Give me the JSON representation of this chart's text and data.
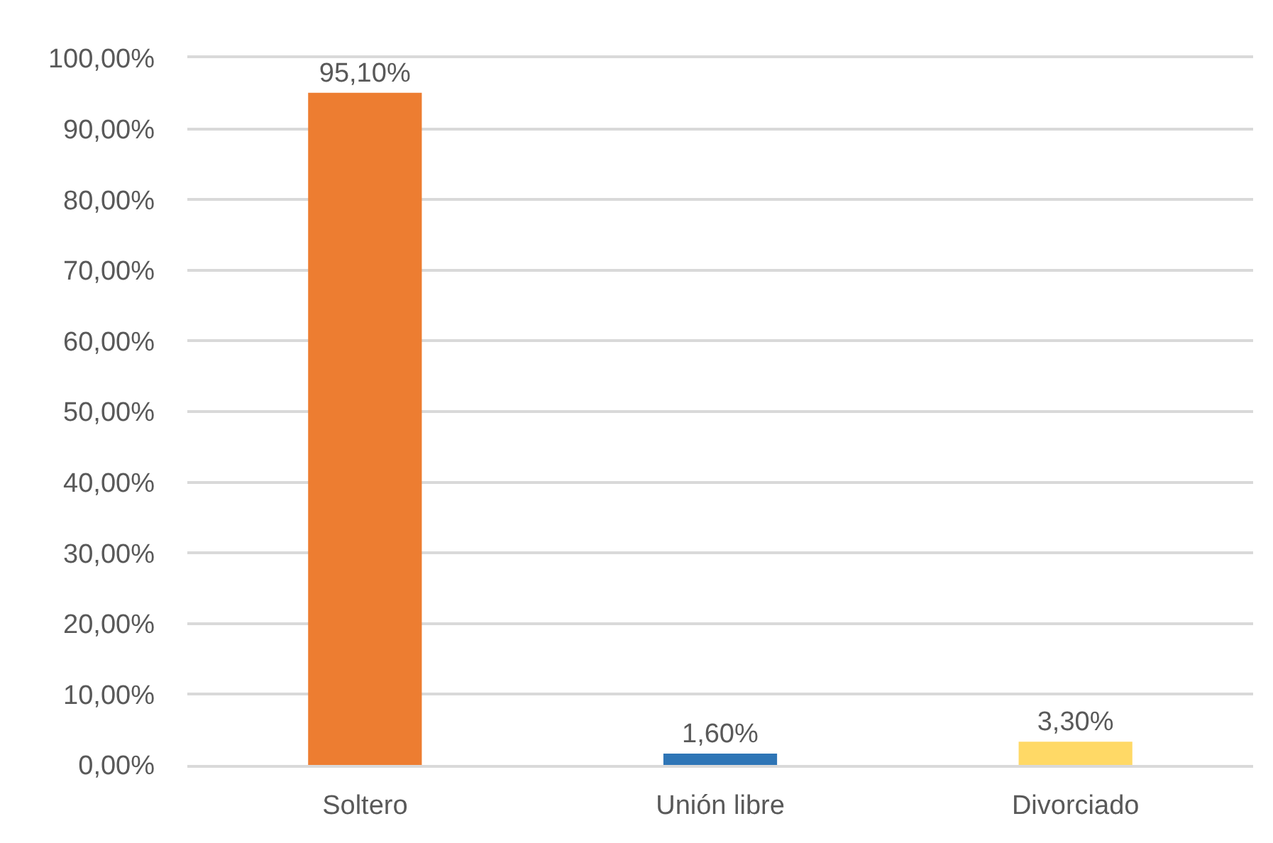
{
  "chart_data": {
    "type": "bar",
    "categories": [
      "Soltero",
      "Unión libre",
      "Divorciado"
    ],
    "values": [
      95.1,
      1.6,
      3.3
    ],
    "colors": [
      "#ed7d31",
      "#2e75b6",
      "#ffd966"
    ],
    "value_labels": [
      "95,10%",
      "1,60%",
      "3,30%"
    ],
    "ylim": [
      0,
      100
    ],
    "yticks": [
      {
        "value": 0,
        "label": "0,00%"
      },
      {
        "value": 10,
        "label": "10,00%"
      },
      {
        "value": 20,
        "label": "20,00%"
      },
      {
        "value": 30,
        "label": "30,00%"
      },
      {
        "value": 40,
        "label": "40,00%"
      },
      {
        "value": 50,
        "label": "50,00%"
      },
      {
        "value": 60,
        "label": "60,00%"
      },
      {
        "value": 70,
        "label": "70,00%"
      },
      {
        "value": 80,
        "label": "80,00%"
      },
      {
        "value": 90,
        "label": "90,00%"
      },
      {
        "value": 100,
        "label": "100,00%"
      }
    ],
    "grid": "y"
  }
}
